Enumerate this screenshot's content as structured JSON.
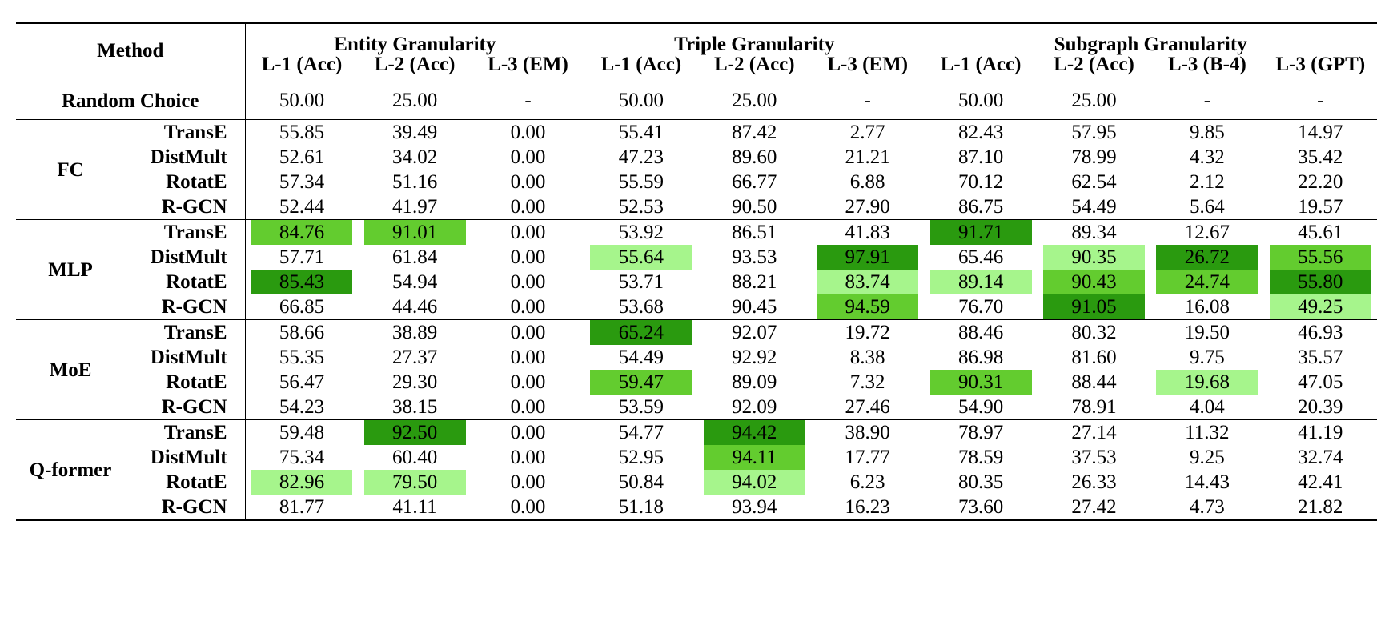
{
  "header": {
    "method_label": "Method",
    "groups": [
      {
        "label": "Entity Granularity",
        "span": 3
      },
      {
        "label": "Triple Granularity",
        "span": 3
      },
      {
        "label": "Subgraph Granularity",
        "span": 4
      }
    ],
    "columns": [
      "L-1 (Acc)",
      "L-2 (Acc)",
      "L-3 (EM)",
      "L-1 (Acc)",
      "L-2 (Acc)",
      "L-3 (EM)",
      "L-1 (Acc)",
      "L-2 (Acc)",
      "L-3 (B-4)",
      "L-3 (GPT)"
    ]
  },
  "random_row": {
    "label": "Random Choice",
    "values": [
      "50.00",
      "25.00",
      "-",
      "50.00",
      "25.00",
      "-",
      "50.00",
      "25.00",
      "-",
      "-"
    ]
  },
  "sections": [
    {
      "name": "FC",
      "rows": [
        {
          "model": "TransE",
          "values": [
            "55.85",
            "39.49",
            "0.00",
            "55.41",
            "87.42",
            "2.77",
            "82.43",
            "57.95",
            "9.85",
            "14.97"
          ],
          "highlight": [
            0,
            0,
            0,
            0,
            0,
            0,
            0,
            0,
            0,
            0
          ]
        },
        {
          "model": "DistMult",
          "values": [
            "52.61",
            "34.02",
            "0.00",
            "47.23",
            "89.60",
            "21.21",
            "87.10",
            "78.99",
            "4.32",
            "35.42"
          ],
          "highlight": [
            0,
            0,
            0,
            0,
            0,
            0,
            0,
            0,
            0,
            0
          ]
        },
        {
          "model": "RotatE",
          "values": [
            "57.34",
            "51.16",
            "0.00",
            "55.59",
            "66.77",
            "6.88",
            "70.12",
            "62.54",
            "2.12",
            "22.20"
          ],
          "highlight": [
            0,
            0,
            0,
            0,
            0,
            0,
            0,
            0,
            0,
            0
          ]
        },
        {
          "model": "R-GCN",
          "values": [
            "52.44",
            "41.97",
            "0.00",
            "52.53",
            "90.50",
            "27.90",
            "86.75",
            "54.49",
            "5.64",
            "19.57"
          ],
          "highlight": [
            0,
            0,
            0,
            0,
            0,
            0,
            0,
            0,
            0,
            0
          ]
        }
      ]
    },
    {
      "name": "MLP",
      "rows": [
        {
          "model": "TransE",
          "values": [
            "84.76",
            "91.01",
            "0.00",
            "53.92",
            "86.51",
            "41.83",
            "91.71",
            "89.34",
            "12.67",
            "45.61"
          ],
          "highlight": [
            2,
            2,
            0,
            0,
            0,
            0,
            1,
            0,
            0,
            0
          ]
        },
        {
          "model": "DistMult",
          "values": [
            "57.71",
            "61.84",
            "0.00",
            "55.64",
            "93.53",
            "97.91",
            "65.46",
            "90.35",
            "26.72",
            "55.56"
          ],
          "highlight": [
            0,
            0,
            0,
            3,
            0,
            1,
            0,
            3,
            1,
            2
          ]
        },
        {
          "model": "RotatE",
          "values": [
            "85.43",
            "54.94",
            "0.00",
            "53.71",
            "88.21",
            "83.74",
            "89.14",
            "90.43",
            "24.74",
            "55.80"
          ],
          "highlight": [
            1,
            0,
            0,
            0,
            0,
            3,
            3,
            2,
            2,
            1
          ]
        },
        {
          "model": "R-GCN",
          "values": [
            "66.85",
            "44.46",
            "0.00",
            "53.68",
            "90.45",
            "94.59",
            "76.70",
            "91.05",
            "16.08",
            "49.25"
          ],
          "highlight": [
            0,
            0,
            0,
            0,
            0,
            2,
            0,
            1,
            0,
            3
          ]
        }
      ]
    },
    {
      "name": "MoE",
      "rows": [
        {
          "model": "TransE",
          "values": [
            "58.66",
            "38.89",
            "0.00",
            "65.24",
            "92.07",
            "19.72",
            "88.46",
            "80.32",
            "19.50",
            "46.93"
          ],
          "highlight": [
            0,
            0,
            0,
            1,
            0,
            0,
            0,
            0,
            0,
            0
          ]
        },
        {
          "model": "DistMult",
          "values": [
            "55.35",
            "27.37",
            "0.00",
            "54.49",
            "92.92",
            "8.38",
            "86.98",
            "81.60",
            "9.75",
            "35.57"
          ],
          "highlight": [
            0,
            0,
            0,
            0,
            0,
            0,
            0,
            0,
            0,
            0
          ]
        },
        {
          "model": "RotatE",
          "values": [
            "56.47",
            "29.30",
            "0.00",
            "59.47",
            "89.09",
            "7.32",
            "90.31",
            "88.44",
            "19.68",
            "47.05"
          ],
          "highlight": [
            0,
            0,
            0,
            2,
            0,
            0,
            2,
            0,
            3,
            0
          ]
        },
        {
          "model": "R-GCN",
          "values": [
            "54.23",
            "38.15",
            "0.00",
            "53.59",
            "92.09",
            "27.46",
            "54.90",
            "78.91",
            "4.04",
            "20.39"
          ],
          "highlight": [
            0,
            0,
            0,
            0,
            0,
            0,
            0,
            0,
            0,
            0
          ]
        }
      ]
    },
    {
      "name": "Q-former",
      "rows": [
        {
          "model": "TransE",
          "values": [
            "59.48",
            "92.50",
            "0.00",
            "54.77",
            "94.42",
            "38.90",
            "78.97",
            "27.14",
            "11.32",
            "41.19"
          ],
          "highlight": [
            0,
            1,
            0,
            0,
            1,
            0,
            0,
            0,
            0,
            0
          ]
        },
        {
          "model": "DistMult",
          "values": [
            "75.34",
            "60.40",
            "0.00",
            "52.95",
            "94.11",
            "17.77",
            "78.59",
            "37.53",
            "9.25",
            "32.74"
          ],
          "highlight": [
            0,
            0,
            0,
            0,
            2,
            0,
            0,
            0,
            0,
            0
          ]
        },
        {
          "model": "RotatE",
          "values": [
            "82.96",
            "79.50",
            "0.00",
            "50.84",
            "94.02",
            "6.23",
            "80.35",
            "26.33",
            "14.43",
            "42.41"
          ],
          "highlight": [
            3,
            3,
            0,
            0,
            3,
            0,
            0,
            0,
            0,
            0
          ]
        },
        {
          "model": "R-GCN",
          "values": [
            "81.77",
            "41.11",
            "0.00",
            "51.18",
            "93.94",
            "16.23",
            "73.60",
            "27.42",
            "4.73",
            "21.82"
          ],
          "highlight": [
            0,
            0,
            0,
            0,
            0,
            0,
            0,
            0,
            0,
            0
          ]
        }
      ]
    }
  ],
  "colors": {
    "highlight_1": "#2a9a0f",
    "highlight_2": "#63cc2f",
    "highlight_3": "#a6f58c"
  }
}
